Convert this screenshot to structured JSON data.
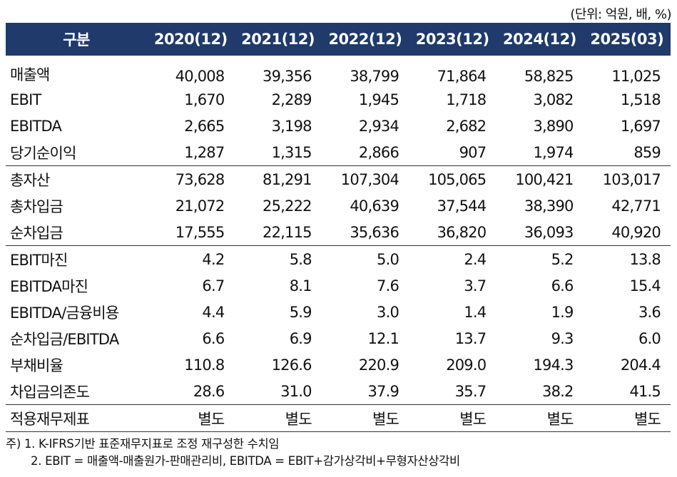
{
  "unit_label": "(단위: 억원, 배, %)",
  "header": [
    "구분",
    "2020(12)",
    "2021(12)",
    "2022(12)",
    "2023(12)",
    "2024(12)",
    "2025(03)"
  ],
  "groups": [
    [
      {
        "label": "매출액",
        "values": [
          "40,008",
          "39,356",
          "38,799",
          "71,864",
          "58,825",
          "11,025"
        ]
      },
      {
        "label": "EBIT",
        "values": [
          "1,670",
          "2,289",
          "1,945",
          "1,718",
          "3,082",
          "1,518"
        ]
      },
      {
        "label": "EBITDA",
        "values": [
          "2,665",
          "3,198",
          "2,934",
          "2,682",
          "3,890",
          "1,697"
        ]
      },
      {
        "label": "당기순이익",
        "values": [
          "1,287",
          "1,315",
          "2,866",
          "907",
          "1,974",
          "859"
        ]
      }
    ],
    [
      {
        "label": "총자산",
        "values": [
          "73,628",
          "81,291",
          "107,304",
          "105,065",
          "100,421",
          "103,017"
        ]
      },
      {
        "label": "총차입금",
        "values": [
          "21,072",
          "25,222",
          "40,639",
          "37,544",
          "38,390",
          "42,771"
        ]
      },
      {
        "label": "순차입금",
        "values": [
          "17,555",
          "22,115",
          "35,636",
          "36,820",
          "36,093",
          "40,920"
        ]
      }
    ],
    [
      {
        "label": "EBIT마진",
        "values": [
          "4.2",
          "5.8",
          "5.0",
          "2.4",
          "5.2",
          "13.8"
        ]
      },
      {
        "label": "EBITDA마진",
        "values": [
          "6.7",
          "8.1",
          "7.6",
          "3.7",
          "6.6",
          "15.4"
        ]
      },
      {
        "label": "EBITDA/금융비용",
        "values": [
          "4.4",
          "5.9",
          "3.0",
          "1.4",
          "1.9",
          "3.6"
        ]
      },
      {
        "label": "순차입금/EBITDA",
        "values": [
          "6.6",
          "6.9",
          "12.1",
          "13.7",
          "9.3",
          "6.0"
        ]
      },
      {
        "label": "부채비율",
        "values": [
          "110.8",
          "126.6",
          "220.9",
          "209.0",
          "194.3",
          "204.4"
        ]
      },
      {
        "label": "차입금의존도",
        "values": [
          "28.6",
          "31.0",
          "37.9",
          "35.7",
          "38.2",
          "41.5"
        ]
      }
    ],
    [
      {
        "label": "적용재무제표",
        "values": [
          "별도",
          "별도",
          "별도",
          "별도",
          "별도",
          "별도"
        ]
      }
    ]
  ],
  "notes": [
    "주) 1. K-IFRS기반 표준재무지표로 조정 재구성한 수치임",
    "2. EBIT = 매출액-매출원가-판매관리비, EBITDA = EBIT+감가상각비+무형자산상각비"
  ]
}
